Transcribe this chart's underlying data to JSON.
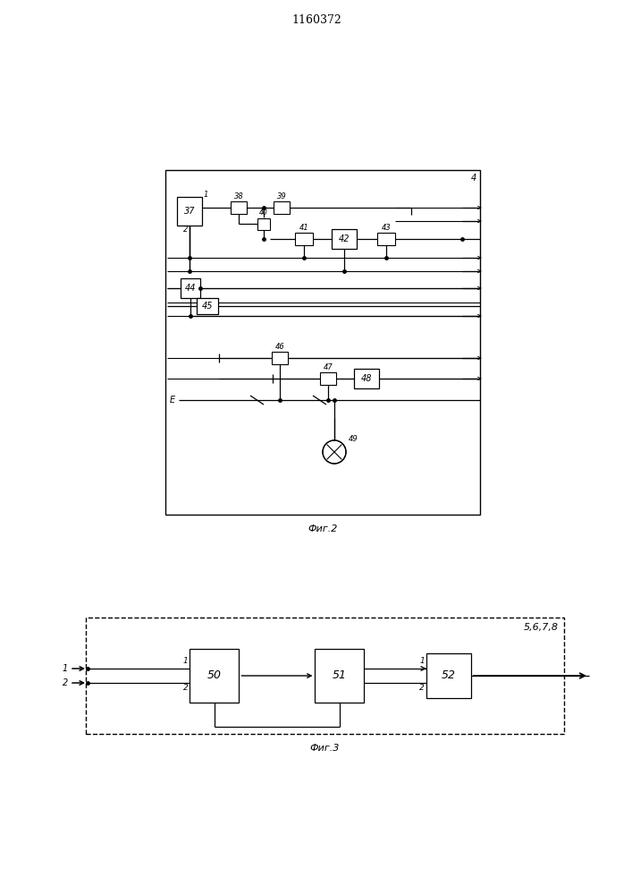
{
  "title": "1160372",
  "fig2_label": "Фиг.2",
  "fig3_label": "Фиг.3",
  "fig3_corner": "5,6,7,8",
  "fig2_corner": "4",
  "bg": "#ffffff",
  "lc": "#000000"
}
